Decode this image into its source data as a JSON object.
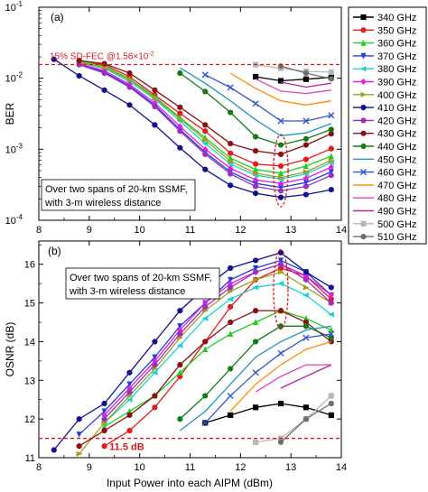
{
  "figure": {
    "xlabel": "Input Power into each AIPM (dBm)",
    "legend_title": "",
    "legend_placement": "right",
    "series_styles": [
      {
        "name": "340 GHz",
        "color": "#000000",
        "marker": "square"
      },
      {
        "name": "350 GHz",
        "color": "#e41a1c",
        "marker": "circle"
      },
      {
        "name": "360 GHz",
        "color": "#22cc22",
        "marker": "triangle-up"
      },
      {
        "name": "370 GHz",
        "color": "#1f3fd8",
        "marker": "triangle-down"
      },
      {
        "name": "380 GHz",
        "color": "#19d4d4",
        "marker": "triangle-left"
      },
      {
        "name": "390 GHz",
        "color": "#e020e0",
        "marker": "diamond"
      },
      {
        "name": "400 GHz",
        "color": "#a0a020",
        "marker": "triangle-right"
      },
      {
        "name": "410 GHz",
        "color": "#101090",
        "marker": "circle"
      },
      {
        "name": "420 GHz",
        "color": "#9b30c0",
        "marker": "circle"
      },
      {
        "name": "430 GHz",
        "color": "#8b1010",
        "marker": "circle"
      },
      {
        "name": "440 GHz",
        "color": "#157a15",
        "marker": "circle"
      },
      {
        "name": "450 GHz",
        "color": "#2196b8",
        "marker": "line"
      },
      {
        "name": "460 GHz",
        "color": "#3355cc",
        "marker": "x"
      },
      {
        "name": "470 GHz",
        "color": "#ff8c00",
        "marker": "line"
      },
      {
        "name": "480 GHz",
        "color": "#e040c0",
        "marker": "line"
      },
      {
        "name": "490 GHz",
        "color": "#c020a0",
        "marker": "line"
      },
      {
        "name": "500 GHz",
        "color": "#b8b8b8",
        "marker": "square"
      },
      {
        "name": "510 GHz",
        "color": "#6e6e6e",
        "marker": "circle"
      }
    ]
  },
  "chart_data": [
    {
      "type": "line",
      "panel_label": "(a)",
      "ylabel": "BER",
      "yscale": "log",
      "xlim": [
        8,
        14
      ],
      "ylim": [
        0.0001,
        0.1
      ],
      "x_ticks": [
        8,
        9,
        10,
        11,
        12,
        13,
        14
      ],
      "y_ticks": [
        {
          "value": 0.0001,
          "base": "10",
          "exp": "-4"
        },
        {
          "value": 0.001,
          "base": "10",
          "exp": "-3"
        },
        {
          "value": 0.01,
          "base": "10",
          "exp": "-2"
        },
        {
          "value": 0.1,
          "base": "10",
          "exp": "-1"
        }
      ],
      "reference_line": {
        "y": 0.0156,
        "label": "15% SD-FEC @1.56×10",
        "label_exp": "-2"
      },
      "annotation": {
        "lines": [
          "Over two spans of 20-km SSMF,",
          "with 3-m wireless distance"
        ]
      },
      "highlight_ellipse_x": 12.8,
      "series": [
        {
          "name": "340 GHz",
          "x": [
            12.3,
            12.8,
            13.3,
            13.8
          ],
          "y": [
            0.0105,
            0.0092,
            0.0097,
            0.0103
          ]
        },
        {
          "name": "350 GHz",
          "x": [
            8.8,
            9.3,
            9.8,
            10.3,
            10.8,
            11.3,
            11.8,
            12.3,
            12.8,
            13.3,
            13.8
          ],
          "y": [
            0.0172,
            0.0155,
            0.0105,
            0.0058,
            0.0032,
            0.0018,
            0.00088,
            0.00062,
            0.00058,
            0.00072,
            0.00102
          ]
        },
        {
          "name": "360 GHz",
          "x": [
            8.8,
            9.3,
            9.8,
            10.3,
            10.8,
            11.3,
            11.8,
            12.3,
            12.8,
            13.3,
            13.8
          ],
          "y": [
            0.0175,
            0.0148,
            0.0098,
            0.0055,
            0.0028,
            0.00145,
            0.00075,
            0.00052,
            0.00046,
            0.00058,
            0.0008
          ]
        },
        {
          "name": "370 GHz",
          "x": [
            8.8,
            9.3,
            9.8,
            10.3,
            10.8,
            11.3,
            11.8,
            12.3,
            12.8,
            13.3,
            13.8
          ],
          "y": [
            0.0158,
            0.0122,
            0.0078,
            0.0042,
            0.0019,
            0.0009,
            0.00048,
            0.00033,
            0.00029,
            0.00034,
            0.00048
          ]
        },
        {
          "name": "380 GHz",
          "x": [
            8.8,
            9.3,
            9.8,
            10.3,
            10.8,
            11.3,
            11.8,
            12.3,
            12.8,
            13.3,
            13.8
          ],
          "y": [
            0.0165,
            0.0138,
            0.009,
            0.0051,
            0.0025,
            0.0012,
            0.00062,
            0.00043,
            0.00038,
            0.00045,
            0.00065
          ]
        },
        {
          "name": "390 GHz",
          "x": [
            8.8,
            9.3,
            9.8,
            10.3,
            10.8,
            11.3,
            11.8,
            12.3,
            12.8,
            13.3,
            13.8
          ],
          "y": [
            0.016,
            0.0128,
            0.0082,
            0.0045,
            0.0021,
            0.001,
            0.00054,
            0.00037,
            0.00033,
            0.00039,
            0.00056
          ]
        },
        {
          "name": "400 GHz",
          "x": [
            8.8,
            9.3,
            9.8,
            10.3,
            10.8,
            11.3,
            11.8,
            12.3,
            12.8,
            13.3,
            13.8
          ],
          "y": [
            0.0168,
            0.0142,
            0.0095,
            0.0053,
            0.0027,
            0.00135,
            0.00068,
            0.00046,
            0.0004,
            0.00048,
            0.0007
          ]
        },
        {
          "name": "410 GHz",
          "x": [
            8.3,
            8.8,
            9.3,
            9.8,
            10.3,
            10.8,
            11.3,
            11.8,
            12.3,
            12.8,
            13.3,
            13.8
          ],
          "y": [
            0.0185,
            0.0108,
            0.0068,
            0.0042,
            0.0022,
            0.00105,
            0.00052,
            0.00031,
            0.00024,
            0.00021,
            0.00023,
            0.00027
          ]
        },
        {
          "name": "420 GHz",
          "x": [
            8.8,
            9.3,
            9.8,
            10.3,
            10.8,
            11.3,
            11.8,
            12.3,
            12.8,
            13.3,
            13.8
          ],
          "y": [
            0.0155,
            0.0118,
            0.0075,
            0.004,
            0.0018,
            0.00085,
            0.00045,
            0.0003,
            0.00026,
            0.0003,
            0.00043
          ]
        },
        {
          "name": "430 GHz",
          "x": [
            8.8,
            9.3,
            9.8,
            10.3,
            10.8,
            11.3,
            11.8,
            12.3,
            12.8,
            13.3,
            13.8
          ],
          "y": [
            0.0178,
            0.016,
            0.0118,
            0.0068,
            0.0039,
            0.0022,
            0.0012,
            0.00095,
            0.00085,
            0.00115,
            0.00165
          ]
        },
        {
          "name": "440 GHz",
          "x": [
            10.8,
            11.3,
            11.8,
            12.3,
            12.8,
            13.3,
            13.8
          ],
          "y": [
            0.0118,
            0.0065,
            0.0033,
            0.0015,
            0.00115,
            0.0014,
            0.0019
          ]
        },
        {
          "name": "450 GHz",
          "x": [
            10.8,
            11.3,
            11.8,
            12.3,
            12.8,
            13.3,
            13.8
          ],
          "y": [
            0.014,
            0.0085,
            0.0048,
            0.0026,
            0.00155,
            0.0017,
            0.0023
          ]
        },
        {
          "name": "460 GHz",
          "x": [
            11.3,
            11.8,
            12.3,
            12.8,
            13.3,
            13.8
          ],
          "y": [
            0.0112,
            0.0074,
            0.0044,
            0.0025,
            0.0025,
            0.003
          ]
        },
        {
          "name": "470 GHz",
          "x": [
            11.8,
            12.3,
            12.8,
            13.3,
            13.8
          ],
          "y": [
            0.0118,
            0.0072,
            0.0048,
            0.0042,
            0.0048
          ]
        },
        {
          "name": "480 GHz",
          "x": [
            12.3,
            12.8,
            13.3,
            13.8
          ],
          "y": [
            0.0098,
            0.0066,
            0.0061,
            0.0068
          ]
        },
        {
          "name": "490 GHz",
          "x": [
            12.8,
            13.3,
            13.8
          ],
          "y": [
            0.0088,
            0.0075,
            0.0085
          ]
        },
        {
          "name": "500 GHz",
          "x": [
            12.3,
            12.8,
            13.3,
            13.8
          ],
          "y": [
            0.0155,
            0.0138,
            0.0125,
            0.0122
          ]
        },
        {
          "name": "510 GHz",
          "x": [
            12.8,
            13.3,
            13.8
          ],
          "y": [
            0.0148,
            0.0118,
            0.0098
          ]
        }
      ]
    },
    {
      "type": "line",
      "panel_label": "(b)",
      "ylabel": "OSNR (dB)",
      "yscale": "linear",
      "xlim": [
        8,
        14
      ],
      "ylim": [
        11,
        16.6
      ],
      "x_ticks": [
        8,
        9,
        10,
        11,
        12,
        13,
        14
      ],
      "y_ticks": [
        11,
        12,
        13,
        14,
        15,
        16
      ],
      "reference_line": {
        "y": 11.5,
        "label": "11.5 dB"
      },
      "annotation": {
        "lines": [
          "Over two spans of 20-km SSMF,",
          "with 3-m wireless distance"
        ]
      },
      "highlight_ellipse_x": 12.8,
      "series": [
        {
          "name": "340 GHz",
          "x": [
            11.3,
            11.8,
            12.3,
            12.8,
            13.3,
            13.8
          ],
          "y": [
            11.9,
            12.1,
            12.3,
            12.4,
            12.3,
            12.1
          ]
        },
        {
          "name": "350 GHz",
          "x": [
            9.3,
            9.8,
            10.3,
            10.8,
            11.3,
            11.8,
            12.3,
            12.8,
            13.3,
            13.8
          ],
          "y": [
            11.3,
            11.7,
            12.3,
            13.1,
            14.0,
            14.9,
            15.6,
            15.9,
            15.7,
            15.1
          ]
        },
        {
          "name": "360 GHz",
          "x": [
            9.3,
            9.8,
            10.3,
            10.8,
            11.3,
            11.8,
            12.3,
            12.8,
            13.3,
            13.8
          ],
          "y": [
            11.8,
            12.2,
            12.6,
            13.2,
            13.8,
            14.2,
            14.5,
            14.8,
            14.6,
            14.3
          ]
        },
        {
          "name": "370 GHz",
          "x": [
            8.8,
            9.3,
            9.8,
            10.3,
            10.8,
            11.3,
            11.8,
            12.3,
            12.8,
            13.3,
            13.8
          ],
          "y": [
            11.6,
            12.2,
            12.9,
            13.6,
            14.4,
            15.0,
            15.6,
            15.9,
            16.1,
            15.8,
            15.2
          ]
        },
        {
          "name": "380 GHz",
          "x": [
            9.3,
            9.8,
            10.3,
            10.8,
            11.3,
            11.8,
            12.3,
            12.8,
            13.3,
            13.8
          ],
          "y": [
            11.9,
            12.5,
            13.2,
            13.9,
            14.6,
            15.1,
            15.4,
            15.5,
            15.2,
            14.7
          ]
        },
        {
          "name": "390 GHz",
          "x": [
            9.3,
            9.8,
            10.3,
            10.8,
            11.3,
            11.8,
            12.3,
            12.8,
            13.3,
            13.8
          ],
          "y": [
            12.1,
            12.8,
            13.5,
            14.3,
            15.0,
            15.5,
            15.8,
            16.0,
            15.7,
            15.2
          ]
        },
        {
          "name": "400 GHz",
          "x": [
            8.8,
            9.3,
            9.8,
            10.3,
            10.8,
            11.3,
            11.8,
            12.3,
            12.8,
            13.3,
            13.8
          ],
          "y": [
            11.1,
            11.9,
            12.6,
            13.3,
            14.1,
            14.8,
            15.3,
            15.6,
            15.8,
            15.4,
            15.0
          ]
        },
        {
          "name": "410 GHz",
          "x": [
            8.3,
            8.8,
            9.3,
            9.8,
            10.3,
            10.8,
            11.3,
            11.8,
            12.3,
            12.8,
            13.3,
            13.8
          ],
          "y": [
            11.2,
            12.0,
            12.4,
            13.2,
            14.0,
            14.8,
            15.4,
            15.9,
            16.1,
            16.3,
            15.8,
            15.4
          ]
        },
        {
          "name": "420 GHz",
          "x": [
            9.3,
            9.8,
            10.3,
            10.8,
            11.3,
            11.8,
            12.3,
            12.8,
            13.3,
            13.8
          ],
          "y": [
            12.0,
            12.7,
            13.4,
            14.2,
            14.9,
            15.4,
            15.8,
            16.0,
            15.6,
            15.0
          ]
        },
        {
          "name": "430 GHz",
          "x": [
            8.8,
            9.3,
            9.8,
            10.3,
            10.8,
            11.3,
            11.8,
            12.3,
            12.8,
            13.3,
            13.8
          ],
          "y": [
            11.3,
            11.7,
            12.1,
            12.6,
            13.4,
            14.0,
            14.5,
            14.8,
            14.8,
            14.5,
            14.0
          ]
        },
        {
          "name": "440 GHz",
          "x": [
            10.8,
            11.3,
            11.8,
            12.3,
            12.8,
            13.3,
            13.8
          ],
          "y": [
            12.0,
            12.6,
            13.3,
            14.0,
            14.4,
            14.4,
            14.1
          ]
        },
        {
          "name": "450 GHz",
          "x": [
            10.8,
            11.3,
            11.8,
            12.3,
            12.8,
            13.3,
            13.8
          ],
          "y": [
            11.7,
            12.2,
            12.9,
            13.6,
            14.0,
            14.3,
            14.4
          ]
        },
        {
          "name": "460 GHz",
          "x": [
            11.3,
            11.8,
            12.3,
            12.8,
            13.3,
            13.8
          ],
          "y": [
            11.9,
            12.6,
            13.2,
            13.7,
            14.1,
            14.2
          ]
        },
        {
          "name": "470 GHz",
          "x": [
            11.8,
            12.3,
            12.8,
            13.3,
            13.8
          ],
          "y": [
            12.2,
            12.9,
            13.4,
            13.8,
            14.0
          ]
        },
        {
          "name": "480 GHz",
          "x": [
            12.3,
            12.8,
            13.3,
            13.8
          ],
          "y": [
            12.7,
            13.1,
            13.4,
            13.4
          ]
        },
        {
          "name": "490 GHz",
          "x": [
            12.8,
            13.3,
            13.8
          ],
          "y": [
            12.8,
            13.1,
            13.4
          ]
        },
        {
          "name": "500 GHz",
          "x": [
            12.3,
            12.8,
            13.3,
            13.8
          ],
          "y": [
            11.4,
            11.5,
            12.0,
            12.6
          ]
        },
        {
          "name": "510 GHz",
          "x": [
            12.8,
            13.3,
            13.8
          ],
          "y": [
            11.4,
            12.0,
            12.4
          ]
        }
      ]
    }
  ]
}
